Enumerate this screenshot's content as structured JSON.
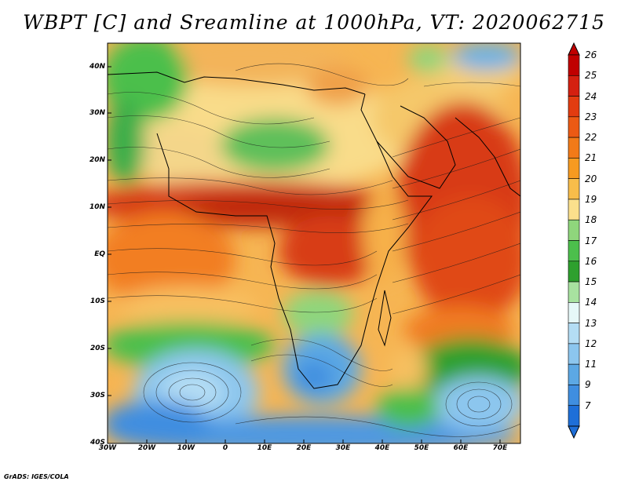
{
  "title": "WBPT [C] and Sreamline at 1000hPa, VT: 2020062715",
  "credit": "GrADS: IGES/COLA",
  "map": {
    "lat_labels": [
      "40N",
      "30N",
      "20N",
      "10N",
      "EQ",
      "10S",
      "20S",
      "30S",
      "40S"
    ],
    "lon_labels": [
      "30W",
      "20W",
      "10W",
      "0",
      "10E",
      "20E",
      "30E",
      "40E",
      "50E",
      "60E",
      "70E"
    ]
  },
  "colorbar": {
    "labels": [
      "26",
      "25",
      "24",
      "23",
      "22",
      "21",
      "20",
      "19",
      "18",
      "17",
      "16",
      "15",
      "14",
      "13",
      "12",
      "11",
      "9",
      "7"
    ],
    "colors": [
      "#c00000",
      "#d42010",
      "#e23c10",
      "#ec5a14",
      "#f27a18",
      "#f69a20",
      "#f8bd4a",
      "#fbe08c",
      "#8fd67c",
      "#4cbf4c",
      "#2ea02e",
      "#a8e2a0",
      "#e6f8f8",
      "#b4ddf4",
      "#8cc6ee",
      "#5ca8e4",
      "#3f8ee0",
      "#1e6fd8"
    ]
  }
}
